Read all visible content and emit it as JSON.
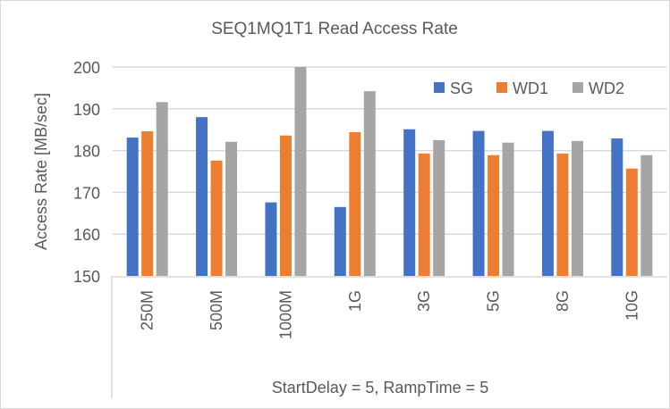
{
  "chart_data": {
    "type": "bar",
    "title": "SEQ1MQ1T1 Read Access Rate",
    "xlabel": "StartDelay = 5, RampTime = 5",
    "ylabel": "Access Rate [MB/sec]",
    "ylim": [
      150,
      200
    ],
    "yticks": [
      "150",
      "160",
      "170",
      "180",
      "190",
      "200"
    ],
    "categories": [
      "250M",
      "500M",
      "1000M",
      "1G",
      "3G",
      "5G",
      "8G",
      "10G"
    ],
    "grid": true,
    "legend_position": "top-right",
    "series": [
      {
        "name": "SG",
        "color": "#4472c4",
        "values": [
          183.1,
          188.0,
          167.6,
          166.5,
          185.1,
          184.7,
          184.7,
          182.9
        ]
      },
      {
        "name": "WD1",
        "color": "#ed7d31",
        "values": [
          184.6,
          177.6,
          183.6,
          184.4,
          179.3,
          178.9,
          179.3,
          175.7
        ]
      },
      {
        "name": "WD2",
        "color": "#a5a5a5",
        "values": [
          191.6,
          182.1,
          200.0,
          194.2,
          182.5,
          181.9,
          182.3,
          178.9
        ]
      }
    ]
  }
}
